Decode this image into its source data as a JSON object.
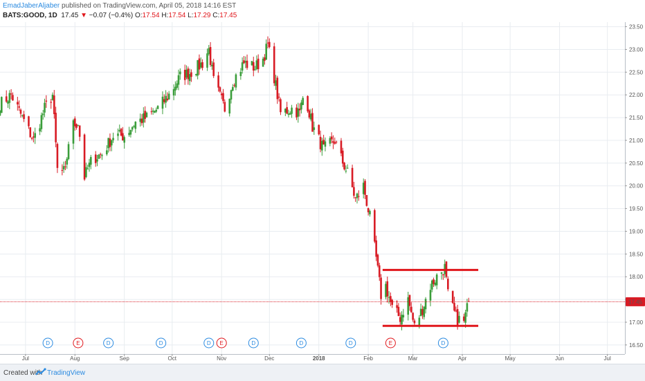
{
  "header": {
    "author": "EmadJaberAljaber",
    "published": "published on TradingView.com, April 05, 2018 14:16 EST",
    "symbol": "BATS:GOOD, 1D",
    "last": "17.45",
    "arrow": "▼",
    "change": "−0.07 (−0.4%)",
    "o_label": "O:",
    "o_val": "17.54",
    "h_label": "H:",
    "h_val": "17.54",
    "l_label": "L:",
    "l_val": "17.29",
    "c_label": "C:",
    "c_val": "17.45"
  },
  "footer": {
    "created": "Created with",
    "brand": "TradingView"
  },
  "colors": {
    "up": "#3a9d3a",
    "down": "#d81b24",
    "accent": "#2a8ae0",
    "price_line": "#d81b24",
    "grid": "#e8ecf0"
  },
  "chart_data": {
    "type": "candlestick",
    "symbol": "BATS:GOOD",
    "interval": "1D",
    "ylim": [
      16.3,
      23.6
    ],
    "y_ticks": [
      "16.50",
      "17.00",
      "17.50",
      "18.00",
      "18.50",
      "19.00",
      "19.50",
      "20.00",
      "20.50",
      "21.00",
      "21.50",
      "22.00",
      "22.50",
      "23.00",
      "23.50"
    ],
    "x_ticks": [
      "Jul",
      "Aug",
      "Sep",
      "Oct",
      "Nov",
      "Dec",
      "2018",
      "Feb",
      "Mar",
      "Apr",
      "May",
      "Jun",
      "Jul"
    ],
    "x_range": [
      "2017-06-15",
      "2018-07-12"
    ],
    "x_tick_dates": [
      "2017-07-01",
      "2017-08-01",
      "2017-09-01",
      "2017-10-01",
      "2017-11-01",
      "2017-12-01",
      "2018-01-01",
      "2018-02-01",
      "2018-03-01",
      "2018-04-01",
      "2018-05-01",
      "2018-06-01",
      "2018-07-01"
    ],
    "last_price_label": "17.45",
    "last_price": 17.45,
    "close_path": [
      [
        "2017-06-15",
        21.8
      ],
      [
        "2017-06-22",
        22.0
      ],
      [
        "2017-06-29",
        21.5
      ],
      [
        "2017-07-06",
        21.0
      ],
      [
        "2017-07-13",
        21.7
      ],
      [
        "2017-07-18",
        22.0
      ],
      [
        "2017-07-21",
        20.35
      ],
      [
        "2017-07-26",
        20.3
      ],
      [
        "2017-07-29",
        21.3
      ],
      [
        "2017-08-03",
        21.4
      ],
      [
        "2017-08-07",
        20.2
      ],
      [
        "2017-08-12",
        20.6
      ],
      [
        "2017-08-18",
        20.7
      ],
      [
        "2017-08-25",
        21.1
      ],
      [
        "2017-09-01",
        21.1
      ],
      [
        "2017-09-08",
        21.4
      ],
      [
        "2017-09-15",
        21.5
      ],
      [
        "2017-09-22",
        21.7
      ],
      [
        "2017-09-29",
        22.0
      ],
      [
        "2017-10-06",
        22.4
      ],
      [
        "2017-10-13",
        22.5
      ],
      [
        "2017-10-20",
        22.7
      ],
      [
        "2017-10-24",
        23.0
      ],
      [
        "2017-10-27",
        22.3
      ],
      [
        "2017-11-03",
        21.7
      ],
      [
        "2017-11-08",
        22.3
      ],
      [
        "2017-11-15",
        22.7
      ],
      [
        "2017-11-22",
        22.6
      ],
      [
        "2017-11-27",
        22.8
      ],
      [
        "2017-11-30",
        23.1
      ],
      [
        "2017-12-04",
        22.4
      ],
      [
        "2017-12-08",
        21.6
      ],
      [
        "2017-12-15",
        21.7
      ],
      [
        "2017-12-20",
        21.6
      ],
      [
        "2017-12-23",
        22.1
      ],
      [
        "2017-12-28",
        21.3
      ],
      [
        "2018-01-04",
        20.8
      ],
      [
        "2018-01-11",
        21.0
      ],
      [
        "2018-01-15",
        20.6
      ],
      [
        "2018-01-20",
        20.2
      ],
      [
        "2018-01-24",
        19.7
      ],
      [
        "2018-01-29",
        20.0
      ],
      [
        "2018-02-02",
        19.3
      ],
      [
        "2018-02-06",
        18.4
      ],
      [
        "2018-02-09",
        17.6
      ],
      [
        "2018-02-12",
        17.8
      ],
      [
        "2018-02-16",
        17.3
      ],
      [
        "2018-02-21",
        17.1
      ],
      [
        "2018-02-26",
        17.5
      ],
      [
        "2018-03-02",
        16.9
      ],
      [
        "2018-03-07",
        17.3
      ],
      [
        "2018-03-12",
        17.8
      ],
      [
        "2018-03-16",
        18.0
      ],
      [
        "2018-03-21",
        18.2
      ],
      [
        "2018-03-23",
        17.6
      ],
      [
        "2018-03-28",
        17.1
      ],
      [
        "2018-04-02",
        17.0
      ],
      [
        "2018-04-05",
        17.45
      ]
    ],
    "annotations": {
      "rectangle": {
        "top": 18.15,
        "bottom": 16.92,
        "x_start": "2018-02-10",
        "x_end": "2018-04-11",
        "color": "#e0161b"
      }
    },
    "events": [
      {
        "label": "D",
        "type": "dividend",
        "date": "2017-07-15"
      },
      {
        "label": "E",
        "type": "earnings",
        "date": "2017-08-03"
      },
      {
        "label": "D",
        "type": "dividend",
        "date": "2017-08-22"
      },
      {
        "label": "D",
        "type": "dividend",
        "date": "2017-09-24"
      },
      {
        "label": "D",
        "type": "dividend",
        "date": "2017-10-24"
      },
      {
        "label": "E",
        "type": "earnings",
        "date": "2017-11-01"
      },
      {
        "label": "D",
        "type": "dividend",
        "date": "2017-11-21"
      },
      {
        "label": "D",
        "type": "dividend",
        "date": "2017-12-21"
      },
      {
        "label": "D",
        "type": "dividend",
        "date": "2018-01-21"
      },
      {
        "label": "E",
        "type": "earnings",
        "date": "2018-02-15"
      },
      {
        "label": "D",
        "type": "dividend",
        "date": "2018-03-20"
      }
    ]
  }
}
